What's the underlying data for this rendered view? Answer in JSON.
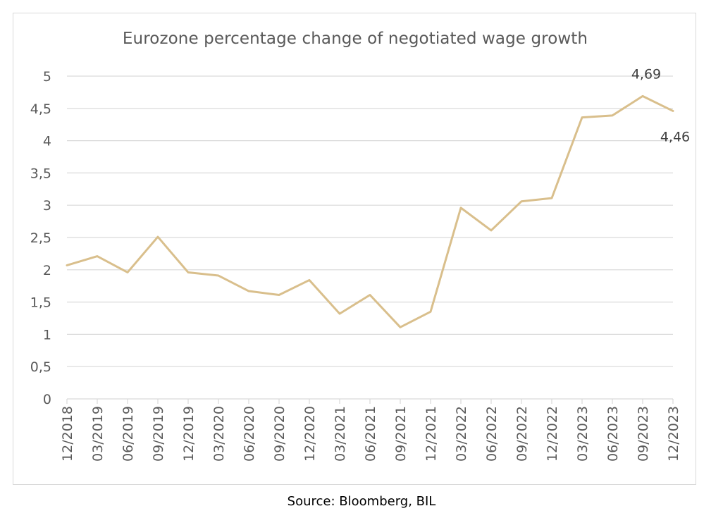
{
  "chart_data": {
    "type": "line",
    "title": "Eurozone percentage change of negotiated wage growth",
    "xlabel": "",
    "ylabel": "",
    "categories": [
      "12/2018",
      "03/2019",
      "06/2019",
      "09/2019",
      "12/2019",
      "03/2020",
      "06/2020",
      "09/2020",
      "12/2020",
      "03/2021",
      "06/2021",
      "09/2021",
      "12/2021",
      "03/2022",
      "06/2022",
      "09/2022",
      "12/2022",
      "03/2023",
      "06/2023",
      "09/2023",
      "12/2023"
    ],
    "series": [
      {
        "values": [
          2.07,
          2.21,
          1.96,
          2.51,
          1.96,
          1.91,
          1.67,
          1.61,
          1.84,
          1.32,
          1.61,
          1.11,
          1.35,
          2.96,
          2.61,
          3.06,
          3.11,
          4.36,
          4.39,
          4.69,
          4.46
        ],
        "color": "#d9bf8c"
      }
    ],
    "ylim": [
      0,
      5
    ],
    "yticks": [
      "0",
      "0,5",
      "1",
      "1,5",
      "2",
      "2,5",
      "3",
      "3,5",
      "4",
      "4,5",
      "5"
    ],
    "grid": true,
    "legend": "none",
    "data_labels": [
      {
        "index": 19,
        "text": "4,69"
      },
      {
        "index": 20,
        "text": "4,46"
      }
    ]
  },
  "source": "Source: Bloomberg, BIL",
  "colors": {
    "line": "#d9bf8c",
    "grid": "#d9d9d9",
    "axis_text": "#595959"
  }
}
